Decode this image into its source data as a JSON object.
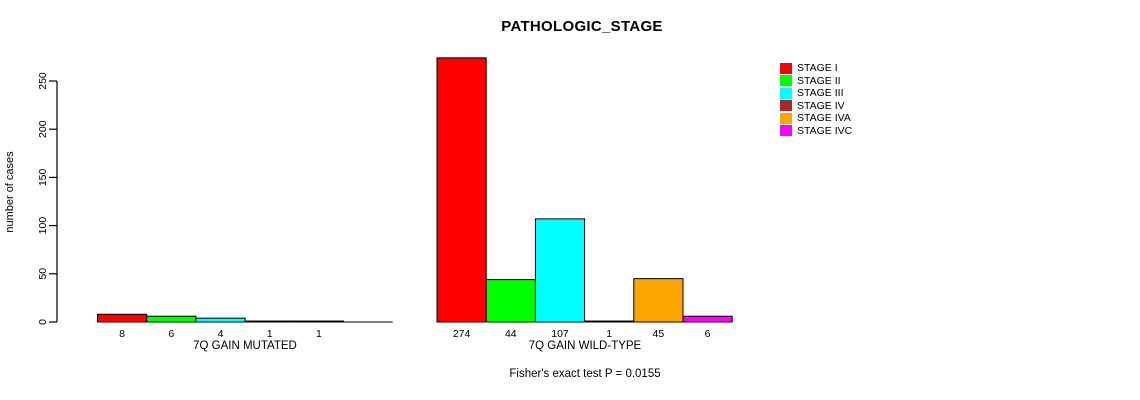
{
  "chart_data": {
    "type": "bar",
    "title": "PATHOLOGIC_STAGE",
    "ylabel": "number of cases",
    "ylim": [
      0,
      250
    ],
    "yticks": [
      0,
      50,
      100,
      150,
      200,
      250
    ],
    "grid": false,
    "legend_position": "right",
    "note": "Fisher's exact test P = 0.0155",
    "stages": [
      {
        "label": "STAGE I",
        "color": "#FF0000"
      },
      {
        "label": "STAGE II",
        "color": "#00FF00"
      },
      {
        "label": "STAGE III",
        "color": "#00FFFF"
      },
      {
        "label": "STAGE IV",
        "color": "#A52A2A"
      },
      {
        "label": "STAGE IVA",
        "color": "#FFA500"
      },
      {
        "label": "STAGE IVC",
        "color": "#FF00FF"
      }
    ],
    "groups": [
      {
        "label": "7Q GAIN MUTATED",
        "values": [
          8,
          6,
          4,
          1,
          1,
          0
        ],
        "value_labels": [
          "8",
          "6",
          "4",
          "1",
          "1",
          ""
        ]
      },
      {
        "label": "7Q GAIN WILD-TYPE",
        "values": [
          274,
          44,
          107,
          1,
          45,
          6
        ],
        "value_labels": [
          "274",
          "44",
          "107",
          "1",
          "45",
          "6"
        ]
      }
    ],
    "axis_color": "#000000"
  }
}
